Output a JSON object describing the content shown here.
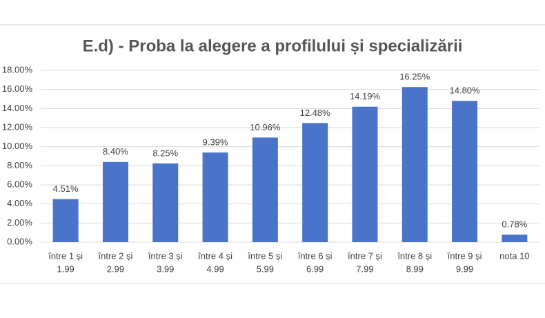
{
  "chart_data": {
    "type": "bar",
    "title": "E.d) - Proba la alegere a profilului și specializării",
    "categories": [
      [
        "între 1 și",
        "1.99"
      ],
      [
        "între 2 și",
        "2.99"
      ],
      [
        "între 3 și",
        "3.99"
      ],
      [
        "între 4 și",
        "4.99"
      ],
      [
        "între 5 și",
        "5.99"
      ],
      [
        "între 6 și",
        "6.99"
      ],
      [
        "între 7 și",
        "7.99"
      ],
      [
        "între 8 și",
        "8.99"
      ],
      [
        "între 9 și",
        "9.99"
      ],
      [
        "nota 10"
      ]
    ],
    "values": [
      4.51,
      8.4,
      8.25,
      9.39,
      10.96,
      12.48,
      14.19,
      16.25,
      14.8,
      0.78
    ],
    "value_labels": [
      "4.51%",
      "8.40%",
      "8.25%",
      "9.39%",
      "10.96%",
      "12.48%",
      "14.19%",
      "16.25%",
      "14.80%",
      "0.78%"
    ],
    "color": "#4a74c9",
    "ylim": [
      0,
      18
    ],
    "yticks": [
      {
        "value": 0,
        "label": "0.00%"
      },
      {
        "value": 2,
        "label": "2.00%"
      },
      {
        "value": 4,
        "label": "4.00%"
      },
      {
        "value": 6,
        "label": "6.00%"
      },
      {
        "value": 8,
        "label": "8.00%"
      },
      {
        "value": 10,
        "label": "10.00%"
      },
      {
        "value": 12,
        "label": "12.00%"
      },
      {
        "value": 14,
        "label": "14.00%"
      },
      {
        "value": 16,
        "label": "16.00%"
      },
      {
        "value": 18,
        "label": "18.00%"
      }
    ],
    "grid": true
  }
}
